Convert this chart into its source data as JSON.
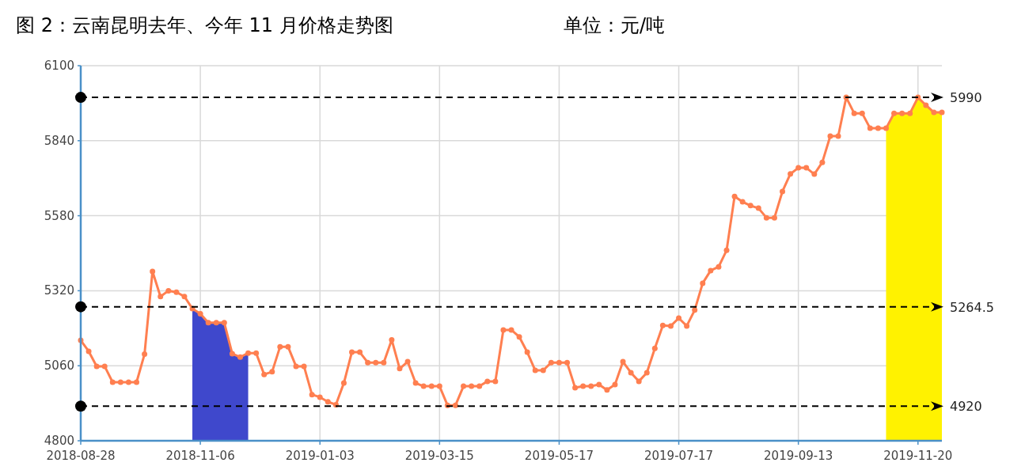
{
  "chart_data": {
    "type": "line",
    "title": "图 2：云南昆明去年、今年 11 月价格走势图",
    "subtitle": "单位：元/吨",
    "categories": [
      "2018-08-28",
      null,
      null,
      null,
      null,
      null,
      null,
      null,
      null,
      null,
      null,
      null,
      null,
      null,
      null,
      "2018-11-06",
      null,
      null,
      null,
      null,
      null,
      null,
      null,
      null,
      null,
      null,
      null,
      null,
      null,
      null,
      "2019-01-03",
      null,
      null,
      null,
      null,
      null,
      null,
      null,
      null,
      null,
      null,
      null,
      null,
      null,
      null,
      "2019-03-15",
      null,
      null,
      null,
      null,
      null,
      null,
      null,
      null,
      null,
      null,
      null,
      null,
      null,
      null,
      "2019-05-17",
      null,
      null,
      null,
      null,
      null,
      null,
      null,
      null,
      null,
      null,
      null,
      null,
      null,
      null,
      "2019-07-17",
      null,
      null,
      null,
      null,
      null,
      null,
      null,
      null,
      null,
      null,
      null,
      null,
      null,
      null,
      "2019-09-13",
      null,
      null,
      null,
      null,
      null,
      null,
      null,
      null,
      null,
      null,
      null,
      null,
      null,
      null,
      "2019-11-20",
      null,
      null,
      null
    ],
    "ylim": [
      4800,
      6100
    ],
    "yticks": [
      4800,
      5060,
      5320,
      5580,
      5840,
      6100
    ],
    "grid": true,
    "marker": "circle",
    "line_style": "solid",
    "series": [
      {
        "type": "area",
        "marker": "none",
        "color": "#3f48cc",
        "values": [
          null,
          null,
          null,
          null,
          null,
          null,
          null,
          null,
          null,
          null,
          null,
          null,
          null,
          null,
          5258,
          5240,
          5209,
          5209,
          5209,
          5102,
          5090,
          5104,
          null,
          null,
          null,
          null,
          null,
          null,
          null,
          null,
          null,
          null,
          null,
          null,
          null,
          null,
          null,
          null,
          null,
          null,
          null,
          null,
          null,
          null,
          null,
          null,
          null,
          null,
          null,
          null,
          null,
          null,
          null,
          null,
          null,
          null,
          null,
          null,
          null,
          null,
          null,
          null,
          null,
          null,
          null,
          null,
          null,
          null,
          null,
          null,
          null,
          null,
          null,
          null,
          null,
          null,
          null,
          null,
          null,
          null,
          null,
          null,
          null,
          null,
          null,
          null,
          null,
          null,
          null,
          null,
          null,
          null,
          null,
          null,
          null,
          null,
          null,
          null,
          null,
          null,
          null,
          null,
          null,
          null,
          null,
          null,
          null,
          null,
          null
        ]
      },
      {
        "type": "area",
        "marker": "none",
        "color": "#fff200",
        "values": [
          null,
          null,
          null,
          null,
          null,
          null,
          null,
          null,
          null,
          null,
          null,
          null,
          null,
          null,
          null,
          null,
          null,
          null,
          null,
          null,
          null,
          null,
          null,
          null,
          null,
          null,
          null,
          null,
          null,
          null,
          null,
          null,
          null,
          null,
          null,
          null,
          null,
          null,
          null,
          null,
          null,
          null,
          null,
          null,
          null,
          null,
          null,
          null,
          null,
          null,
          null,
          null,
          null,
          null,
          null,
          null,
          null,
          null,
          null,
          null,
          null,
          null,
          null,
          null,
          null,
          null,
          null,
          null,
          null,
          null,
          null,
          null,
          null,
          null,
          null,
          null,
          null,
          null,
          null,
          null,
          null,
          null,
          null,
          null,
          null,
          null,
          null,
          null,
          null,
          null,
          null,
          null,
          null,
          null,
          null,
          null,
          null,
          null,
          null,
          null,
          null,
          5883,
          5935,
          5935,
          5935,
          5990,
          5963,
          5938,
          5938
        ]
      },
      {
        "type": "line",
        "color": "#ff7f50",
        "values": [
          5148,
          5110,
          5058,
          5058,
          5003,
          5003,
          5003,
          5003,
          5100,
          5387,
          5300,
          5320,
          5315,
          5300,
          5258,
          5240,
          5209,
          5209,
          5209,
          5102,
          5090,
          5104,
          5104,
          5030,
          5039,
          5126,
          5126,
          5058,
          5058,
          4960,
          4951,
          4935,
          4925,
          5000,
          5107,
          5107,
          5071,
          5071,
          5071,
          5150,
          5050,
          5074,
          5000,
          4989,
          4989,
          4989,
          4923,
          4923,
          4989,
          4989,
          4989,
          5006,
          5006,
          5184,
          5184,
          5160,
          5107,
          5044,
          5044,
          5071,
          5071,
          5071,
          4984,
          4989,
          4989,
          4995,
          4976,
          4995,
          5074,
          5036,
          5006,
          5036,
          5120,
          5200,
          5198,
          5225,
          5198,
          5253,
          5346,
          5390,
          5403,
          5460,
          5647,
          5628,
          5615,
          5606,
          5573,
          5573,
          5664,
          5725,
          5746,
          5746,
          5724,
          5765,
          5856,
          5856,
          5990,
          5935,
          5935,
          5883,
          5883,
          5883,
          5935,
          5935,
          5935,
          5990,
          5963,
          5938,
          5938
        ]
      }
    ],
    "ref_lines": [
      {
        "axis": "y",
        "value": 5990,
        "label": "5990",
        "color": "#000000",
        "line_style": "dashed"
      },
      {
        "axis": "y",
        "value": 5264.5,
        "label": "5264.5",
        "color": "#000000",
        "line_style": "dashed"
      },
      {
        "axis": "y",
        "value": 4920,
        "label": "4920",
        "color": "#000000",
        "line_style": "dashed"
      }
    ]
  }
}
